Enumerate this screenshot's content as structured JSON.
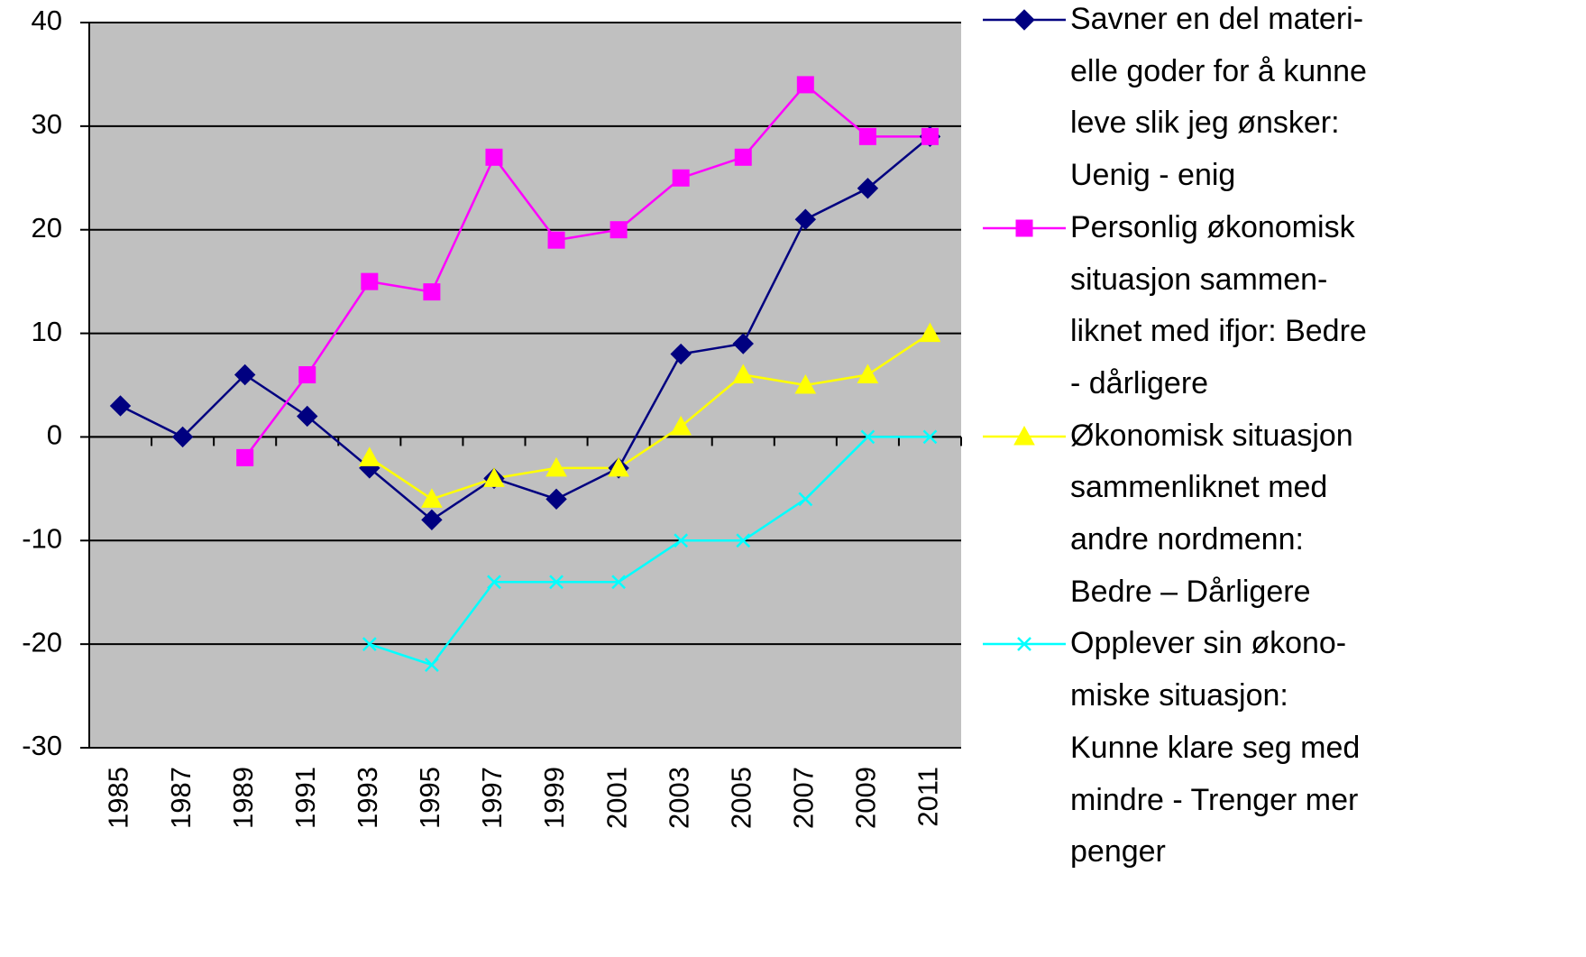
{
  "chart_data": {
    "type": "line",
    "categories": [
      "1985",
      "1987",
      "1989",
      "1991",
      "1993",
      "1995",
      "1997",
      "1999",
      "2001",
      "2003",
      "2005",
      "2007",
      "2009",
      "2011"
    ],
    "series": [
      {
        "name": "Savner en del materi-\nelle goder for å kunne\nleve slik jeg ønsker:\nUenig - enig",
        "color": "#000080",
        "marker": "diamond",
        "values": [
          3,
          0,
          6,
          2,
          -3,
          -8,
          -4,
          -6,
          -3,
          8,
          9,
          21,
          24,
          29
        ]
      },
      {
        "name": "Personlig økonomisk\nsituasjon sammen-\nliknet med ifjor: Bedre\n- dårligere",
        "color": "#ff00ff",
        "marker": "square",
        "values": [
          null,
          null,
          -2,
          6,
          15,
          14,
          27,
          19,
          20,
          25,
          27,
          34,
          29,
          29
        ]
      },
      {
        "name": "Økonomisk situasjon\nsammenliknet med\nandre nordmenn:\nBedre – Dårligere",
        "color": "#ffff00",
        "marker": "triangle",
        "values": [
          null,
          null,
          null,
          null,
          -2,
          -6,
          -4,
          -3,
          -3,
          1,
          6,
          5,
          6,
          10
        ]
      },
      {
        "name": "Opplever sin økono-\nmiske situasjon:\nKunne klare seg med\nmindre - Trenger mer\npenger",
        "color": "#00ffff",
        "marker": "x",
        "values": [
          null,
          null,
          null,
          null,
          -20,
          -22,
          -14,
          -14,
          -14,
          -10,
          -10,
          -6,
          0,
          0
        ]
      }
    ],
    "ylim": [
      -30,
      40
    ],
    "yticks": [
      -30,
      -20,
      -10,
      0,
      10,
      20,
      30,
      40
    ],
    "grid": true,
    "legend": "right"
  }
}
